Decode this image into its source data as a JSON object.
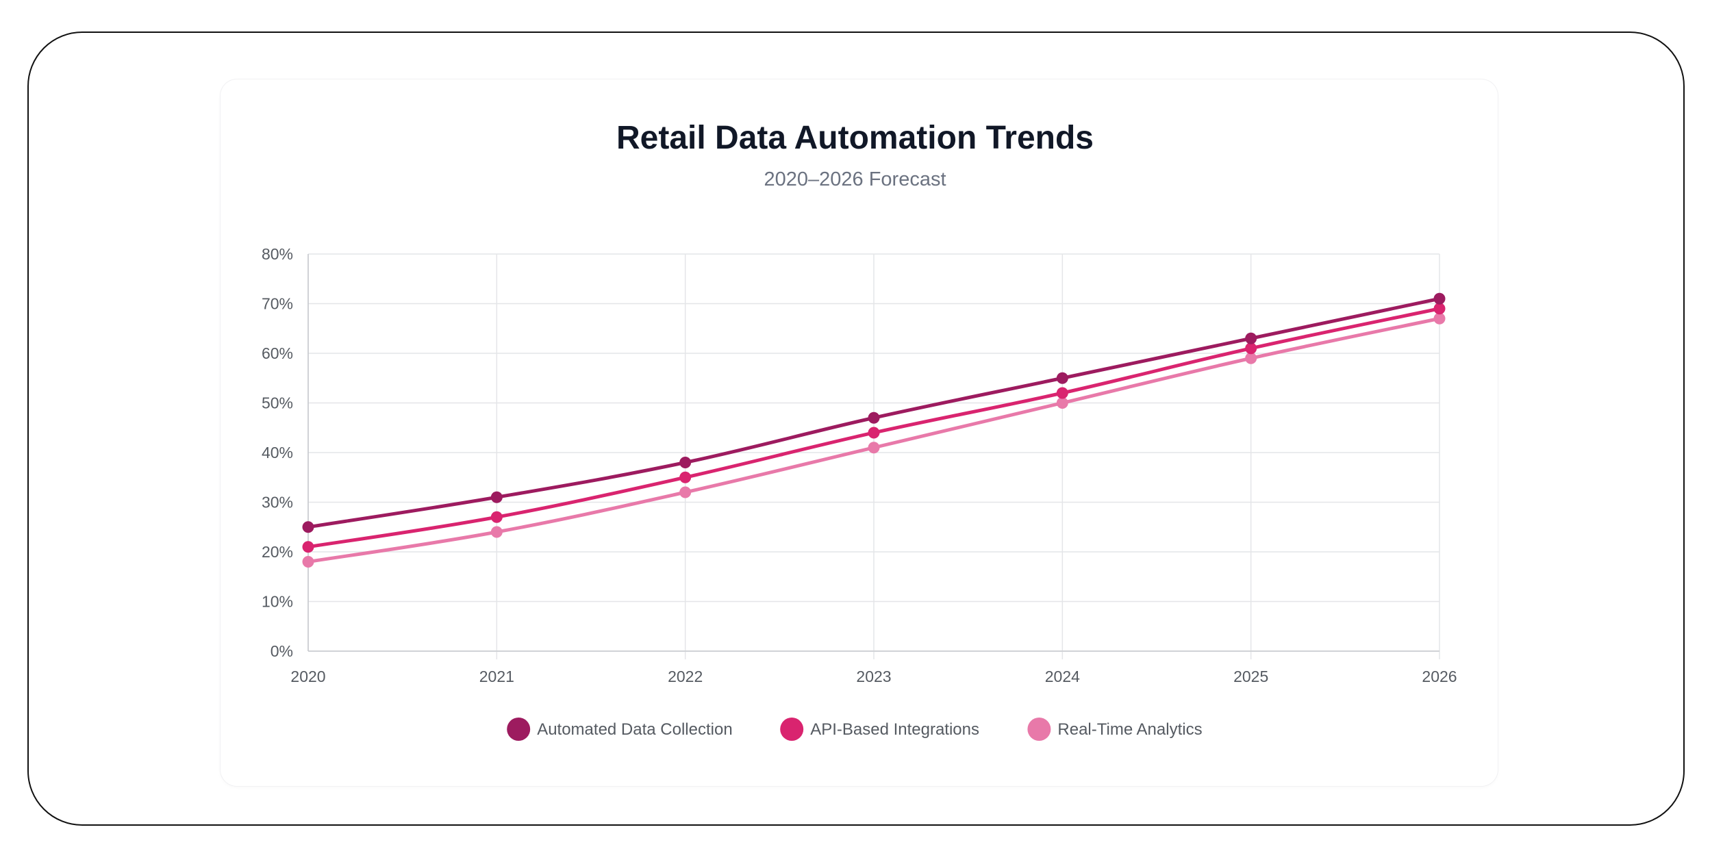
{
  "chart_data": {
    "type": "line",
    "title": "Retail Data Automation Trends",
    "subtitle": "2020–2026 Forecast",
    "xlabel": "",
    "ylabel": "",
    "categories": [
      "2020",
      "2021",
      "2022",
      "2023",
      "2024",
      "2025",
      "2026"
    ],
    "y_ticks": [
      "0%",
      "10%",
      "20%",
      "30%",
      "40%",
      "50%",
      "60%",
      "70%",
      "80%"
    ],
    "ylim": [
      0,
      80
    ],
    "grid": true,
    "legend": "bottom-center",
    "series": [
      {
        "name": "Automated Data Collection",
        "color": "#9d1b5f",
        "values": [
          25,
          31,
          38,
          47,
          55,
          63,
          71
        ]
      },
      {
        "name": "API-Based Integrations",
        "color": "#d9246f",
        "values": [
          21,
          27,
          35,
          44,
          52,
          61,
          69
        ]
      },
      {
        "name": "Real-Time Analytics",
        "color": "#e879a9",
        "values": [
          18,
          24,
          32,
          41,
          50,
          59,
          67
        ]
      }
    ]
  }
}
